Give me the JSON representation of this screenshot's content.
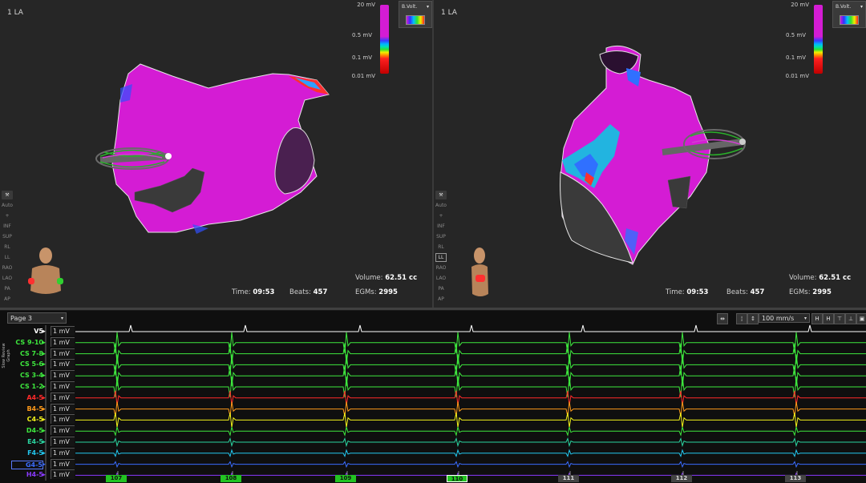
{
  "maps": [
    {
      "title": "1 LA",
      "colorbar": {
        "max": "20 mV",
        "mid_high": "0.5 mV",
        "mid_low": "0.1 mV",
        "min": "0.01 mV"
      },
      "map_type_label": "B.Volt.",
      "tools": [
        "Auto",
        "+",
        "INF",
        "SUP",
        "RL",
        "LL",
        "RAO",
        "LAO",
        "PA",
        "AP"
      ],
      "active_view": "",
      "time_label": "Time:",
      "time_value": "09:53",
      "beats_label": "Beats:",
      "beats_value": "457",
      "volume_label": "Volume:",
      "volume_value": "62.51 cc",
      "egms_label": "EGMs:",
      "egms_value": "2995"
    },
    {
      "title": "1 LA",
      "colorbar": {
        "max": "20 mV",
        "mid_high": "0.5 mV",
        "mid_low": "0.1 mV",
        "min": "0.01 mV"
      },
      "map_type_label": "B.Volt.",
      "tools": [
        "Auto",
        "+",
        "INF",
        "SUP",
        "RL",
        "LL",
        "RAO",
        "LAO",
        "PA",
        "AP"
      ],
      "active_view": "LL",
      "time_label": "Time:",
      "time_value": "09:53",
      "beats_label": "Beats:",
      "beats_value": "457",
      "volume_label": "Volume:",
      "volume_value": "62.51 cc",
      "egms_label": "EGMs:",
      "egms_value": "2995"
    }
  ],
  "ekg": {
    "page": "Page 3",
    "speed": "100 mm/s",
    "side_label": "Slow Review Graph",
    "channels": [
      {
        "name": "V5",
        "color": "#ffffff",
        "gain": "1 mV"
      },
      {
        "name": "CS 9-10",
        "color": "#3ee83e",
        "gain": "1 mV"
      },
      {
        "name": "CS 7-8",
        "color": "#3ee83e",
        "gain": "1 mV"
      },
      {
        "name": "CS 5-6",
        "color": "#3ee83e",
        "gain": "1 mV"
      },
      {
        "name": "CS 3-4",
        "color": "#3ee83e",
        "gain": "1 mV"
      },
      {
        "name": "CS 1-2",
        "color": "#3ee83e",
        "gain": "1 mV"
      },
      {
        "name": "A4-5",
        "color": "#ff2a2a",
        "gain": "1 mV"
      },
      {
        "name": "B4-5",
        "color": "#ff9a1a",
        "gain": "1 mV"
      },
      {
        "name": "C4-5",
        "color": "#f2f21a",
        "gain": "1 mV"
      },
      {
        "name": "D4-5",
        "color": "#3ee83e",
        "gain": "1 mV"
      },
      {
        "name": "E4-5",
        "color": "#2ad4a0",
        "gain": "1 mV"
      },
      {
        "name": "F4-5",
        "color": "#22c8f0",
        "gain": "1 mV"
      },
      {
        "name": "G4-5",
        "color": "#3a6cff",
        "gain": "1 mV"
      },
      {
        "name": "H4-5",
        "color": "#8a3aff",
        "gain": "1 mV"
      }
    ],
    "beats": [
      {
        "label": "107",
        "state": "green"
      },
      {
        "label": "108",
        "state": "green"
      },
      {
        "label": "109",
        "state": "green"
      },
      {
        "label": "110",
        "state": "sel"
      },
      {
        "label": "111",
        "state": "grey"
      },
      {
        "label": "112",
        "state": "grey"
      },
      {
        "label": "113",
        "state": "grey"
      }
    ]
  }
}
